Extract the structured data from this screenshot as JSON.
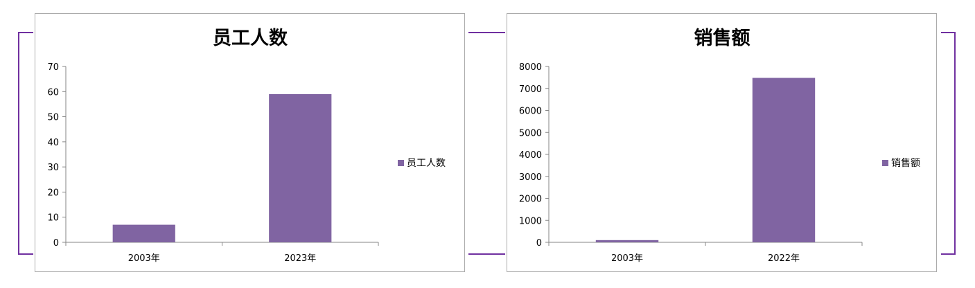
{
  "colors": {
    "bar": "#8064a2",
    "bracket": "#7030a0",
    "axis": "#868686",
    "frame": "#ababab"
  },
  "chart_data": [
    {
      "type": "bar",
      "title": "员工人数",
      "categories": [
        "2003年",
        "2023年"
      ],
      "series": [
        {
          "name": "员工人数",
          "values": [
            7,
            59
          ]
        }
      ],
      "ylim": [
        0,
        70
      ],
      "yticks": [
        0,
        10,
        20,
        30,
        40,
        50,
        60,
        70
      ],
      "grid": false,
      "legend": "right"
    },
    {
      "type": "bar",
      "title": "销售额",
      "categories": [
        "2003年",
        "2022年"
      ],
      "series": [
        {
          "name": "销售额",
          "values": [
            100,
            7480
          ]
        }
      ],
      "ylim": [
        0,
        8000
      ],
      "yticks": [
        0,
        1000,
        2000,
        3000,
        4000,
        5000,
        6000,
        7000,
        8000
      ],
      "grid": false,
      "legend": "right"
    }
  ]
}
